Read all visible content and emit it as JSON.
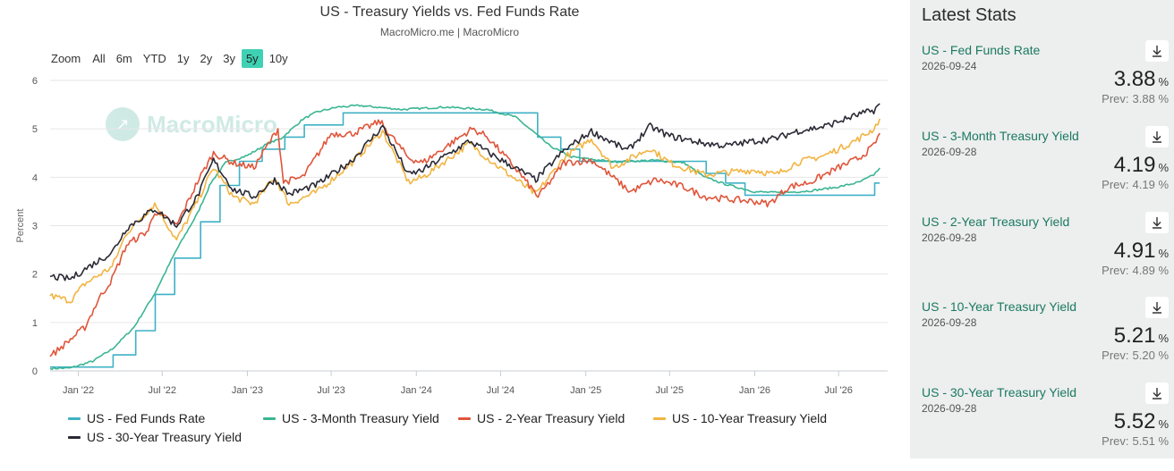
{
  "title": "US - Treasury Yields vs. Fed Funds Rate",
  "subtitle": "MacroMicro.me | MacroMicro",
  "watermark": "MacroMicro",
  "zoom": {
    "label": "Zoom",
    "buttons": [
      "All",
      "6m",
      "YTD",
      "1y",
      "2y",
      "3y",
      "5y",
      "10y"
    ],
    "active": "5y"
  },
  "colors": {
    "fed_funds": "#3fb1c6",
    "t3m": "#3bb593",
    "t2y": "#e0553a",
    "t10y": "#f2b441",
    "t30y": "#2a2a35",
    "accent": "#3fd1b4"
  },
  "chart_data": {
    "type": "line",
    "title": "US - Treasury Yields vs. Fed Funds Rate",
    "ylabel": "Percent",
    "ylim": [
      0,
      6
    ],
    "yticks": [
      "0",
      "1",
      "2",
      "3",
      "4",
      "5",
      "6"
    ],
    "xlim": [
      "2021-11-01",
      "2026-10-15"
    ],
    "xticks": [
      {
        "label": "Jan '22",
        "date": "2022-01-01"
      },
      {
        "label": "Jul '22",
        "date": "2022-07-01"
      },
      {
        "label": "Jan '23",
        "date": "2023-01-01"
      },
      {
        "label": "Jul '23",
        "date": "2023-07-01"
      },
      {
        "label": "Jan '24",
        "date": "2024-01-01"
      },
      {
        "label": "Jul '24",
        "date": "2024-07-01"
      },
      {
        "label": "Jan '25",
        "date": "2025-01-01"
      },
      {
        "label": "Jul '25",
        "date": "2025-07-01"
      },
      {
        "label": "Jan '26",
        "date": "2026-01-01"
      },
      {
        "label": "Jul '26",
        "date": "2026-07-01"
      }
    ],
    "grid": true,
    "legend_position": "bottom",
    "series": [
      {
        "key": "fed_funds",
        "name": "US - Fed Funds Rate",
        "step": true,
        "points": [
          [
            "2021-11-01",
            0.08
          ],
          [
            "2022-03-17",
            0.33
          ],
          [
            "2022-05-05",
            0.83
          ],
          [
            "2022-06-16",
            1.58
          ],
          [
            "2022-07-28",
            2.33
          ],
          [
            "2022-09-22",
            3.08
          ],
          [
            "2022-11-03",
            3.83
          ],
          [
            "2022-12-15",
            4.33
          ],
          [
            "2023-02-02",
            4.58
          ],
          [
            "2023-03-23",
            4.83
          ],
          [
            "2023-05-04",
            5.08
          ],
          [
            "2023-07-27",
            5.33
          ],
          [
            "2024-09-19",
            4.83
          ],
          [
            "2024-11-08",
            4.58
          ],
          [
            "2024-12-19",
            4.33
          ],
          [
            "2025-09-18",
            4.08
          ],
          [
            "2025-10-30",
            3.88
          ],
          [
            "2025-12-11",
            3.63
          ],
          [
            "2026-09-17",
            3.88
          ],
          [
            "2026-09-24",
            3.88
          ]
        ]
      },
      {
        "key": "t3m",
        "name": "US - 3-Month Treasury Yield",
        "points": [
          [
            "2021-11-01",
            0.05
          ],
          [
            "2021-12-15",
            0.06
          ],
          [
            "2022-02-01",
            0.2
          ],
          [
            "2022-03-15",
            0.45
          ],
          [
            "2022-05-01",
            0.9
          ],
          [
            "2022-06-15",
            1.6
          ],
          [
            "2022-08-01",
            2.5
          ],
          [
            "2022-09-15",
            3.25
          ],
          [
            "2022-10-15",
            3.9
          ],
          [
            "2022-11-15",
            4.3
          ],
          [
            "2023-01-01",
            4.45
          ],
          [
            "2023-02-15",
            4.7
          ],
          [
            "2023-03-15",
            4.8
          ],
          [
            "2023-05-01",
            5.2
          ],
          [
            "2023-06-01",
            5.35
          ],
          [
            "2023-07-15",
            5.45
          ],
          [
            "2023-09-01",
            5.48
          ],
          [
            "2023-12-01",
            5.4
          ],
          [
            "2024-03-01",
            5.45
          ],
          [
            "2024-06-01",
            5.4
          ],
          [
            "2024-08-01",
            5.25
          ],
          [
            "2024-09-15",
            4.9
          ],
          [
            "2024-10-15",
            4.65
          ],
          [
            "2024-12-01",
            4.42
          ],
          [
            "2025-03-01",
            4.32
          ],
          [
            "2025-06-01",
            4.35
          ],
          [
            "2025-08-01",
            4.3
          ],
          [
            "2025-09-15",
            4.0
          ],
          [
            "2025-11-01",
            3.85
          ],
          [
            "2026-01-01",
            3.7
          ],
          [
            "2026-03-01",
            3.68
          ],
          [
            "2026-05-01",
            3.72
          ],
          [
            "2026-07-01",
            3.8
          ],
          [
            "2026-08-15",
            3.9
          ],
          [
            "2026-09-15",
            4.05
          ],
          [
            "2026-09-28",
            4.19
          ]
        ]
      },
      {
        "key": "t2y",
        "name": "US - 2-Year Treasury Yield",
        "points": [
          [
            "2021-11-01",
            0.3
          ],
          [
            "2021-12-15",
            0.65
          ],
          [
            "2022-01-15",
            0.9
          ],
          [
            "2022-02-15",
            1.5
          ],
          [
            "2022-03-15",
            1.9
          ],
          [
            "2022-04-15",
            2.6
          ],
          [
            "2022-06-01",
            2.9
          ],
          [
            "2022-06-15",
            3.3
          ],
          [
            "2022-08-01",
            3.0
          ],
          [
            "2022-09-15",
            3.9
          ],
          [
            "2022-10-20",
            4.5
          ],
          [
            "2022-12-01",
            4.3
          ],
          [
            "2023-01-15",
            4.2
          ],
          [
            "2023-03-08",
            5.0
          ],
          [
            "2023-03-20",
            3.9
          ],
          [
            "2023-05-01",
            4.0
          ],
          [
            "2023-07-01",
            4.9
          ],
          [
            "2023-08-15",
            4.9
          ],
          [
            "2023-10-15",
            5.15
          ],
          [
            "2023-12-15",
            4.4
          ],
          [
            "2024-01-15",
            4.3
          ],
          [
            "2024-04-30",
            5.0
          ],
          [
            "2024-06-01",
            4.85
          ],
          [
            "2024-08-01",
            4.2
          ],
          [
            "2024-09-20",
            3.6
          ],
          [
            "2024-10-15",
            3.9
          ],
          [
            "2024-11-15",
            4.3
          ],
          [
            "2025-01-15",
            4.35
          ],
          [
            "2025-04-07",
            3.7
          ],
          [
            "2025-06-01",
            3.95
          ],
          [
            "2025-08-01",
            3.8
          ],
          [
            "2025-09-15",
            3.6
          ],
          [
            "2025-11-01",
            3.55
          ],
          [
            "2026-01-01",
            3.5
          ],
          [
            "2026-02-01",
            3.45
          ],
          [
            "2026-03-15",
            3.8
          ],
          [
            "2026-05-01",
            3.9
          ],
          [
            "2026-07-01",
            4.2
          ],
          [
            "2026-08-15",
            4.4
          ],
          [
            "2026-09-15",
            4.65
          ],
          [
            "2026-09-28",
            4.91
          ]
        ]
      },
      {
        "key": "t10y",
        "name": "US - 10-Year Treasury Yield",
        "points": [
          [
            "2021-11-01",
            1.55
          ],
          [
            "2021-12-15",
            1.45
          ],
          [
            "2022-01-15",
            1.8
          ],
          [
            "2022-03-15",
            2.15
          ],
          [
            "2022-04-15",
            2.85
          ],
          [
            "2022-06-15",
            3.45
          ],
          [
            "2022-08-01",
            2.7
          ],
          [
            "2022-09-15",
            3.5
          ],
          [
            "2022-10-20",
            4.2
          ],
          [
            "2022-12-01",
            3.6
          ],
          [
            "2023-01-15",
            3.45
          ],
          [
            "2023-03-01",
            4.0
          ],
          [
            "2023-04-01",
            3.45
          ],
          [
            "2023-06-01",
            3.7
          ],
          [
            "2023-08-15",
            4.3
          ],
          [
            "2023-10-20",
            4.95
          ],
          [
            "2023-12-15",
            3.9
          ],
          [
            "2024-01-15",
            4.0
          ],
          [
            "2024-04-25",
            4.7
          ],
          [
            "2024-06-15",
            4.3
          ],
          [
            "2024-09-15",
            3.65
          ],
          [
            "2024-11-15",
            4.4
          ],
          [
            "2025-01-13",
            4.8
          ],
          [
            "2025-03-01",
            4.2
          ],
          [
            "2025-05-20",
            4.6
          ],
          [
            "2025-07-01",
            4.3
          ],
          [
            "2025-09-15",
            4.05
          ],
          [
            "2025-11-01",
            4.1
          ],
          [
            "2026-01-01",
            4.15
          ],
          [
            "2026-02-15",
            4.05
          ],
          [
            "2026-04-01",
            4.3
          ],
          [
            "2026-06-01",
            4.45
          ],
          [
            "2026-07-15",
            4.65
          ],
          [
            "2026-08-15",
            4.8
          ],
          [
            "2026-09-15",
            5.0
          ],
          [
            "2026-09-28",
            5.21
          ]
        ]
      },
      {
        "key": "t30y",
        "name": "US - 30-Year Treasury Yield",
        "points": [
          [
            "2021-11-01",
            1.95
          ],
          [
            "2021-12-15",
            1.9
          ],
          [
            "2022-01-15",
            2.1
          ],
          [
            "2022-03-15",
            2.45
          ],
          [
            "2022-04-15",
            2.95
          ],
          [
            "2022-06-15",
            3.35
          ],
          [
            "2022-08-01",
            3.0
          ],
          [
            "2022-09-15",
            3.6
          ],
          [
            "2022-10-20",
            4.35
          ],
          [
            "2022-12-01",
            3.75
          ],
          [
            "2023-01-15",
            3.6
          ],
          [
            "2023-03-01",
            3.95
          ],
          [
            "2023-04-01",
            3.65
          ],
          [
            "2023-06-01",
            3.85
          ],
          [
            "2023-08-15",
            4.35
          ],
          [
            "2023-10-20",
            5.05
          ],
          [
            "2023-12-15",
            4.05
          ],
          [
            "2024-01-15",
            4.15
          ],
          [
            "2024-04-25",
            4.75
          ],
          [
            "2024-06-15",
            4.45
          ],
          [
            "2024-09-15",
            3.95
          ],
          [
            "2024-11-15",
            4.55
          ],
          [
            "2025-01-13",
            4.95
          ],
          [
            "2025-04-01",
            4.55
          ],
          [
            "2025-05-20",
            5.05
          ],
          [
            "2025-07-01",
            4.85
          ],
          [
            "2025-09-15",
            4.7
          ],
          [
            "2025-11-01",
            4.65
          ],
          [
            "2026-01-01",
            4.75
          ],
          [
            "2026-02-15",
            4.8
          ],
          [
            "2026-04-01",
            4.95
          ],
          [
            "2026-06-01",
            5.05
          ],
          [
            "2026-07-15",
            5.2
          ],
          [
            "2026-08-15",
            5.3
          ],
          [
            "2026-09-15",
            5.38
          ],
          [
            "2026-09-28",
            5.52
          ]
        ]
      }
    ]
  },
  "sidebar": {
    "title": "Latest Stats",
    "stats": [
      {
        "name": "US - Fed Funds Rate",
        "date": "2026-09-24",
        "value": "3.88",
        "unit": "%",
        "prev_label": "Prev:",
        "prev_value": "3.88",
        "prev_unit": "%",
        "icon": "download-icon"
      },
      {
        "name": "US - 3-Month Treasury Yield",
        "date": "2026-09-28",
        "value": "4.19",
        "unit": "%",
        "prev_label": "Prev:",
        "prev_value": "4.19",
        "prev_unit": "%",
        "icon": "download-icon"
      },
      {
        "name": "US - 2-Year Treasury Yield",
        "date": "2026-09-28",
        "value": "4.91",
        "unit": "%",
        "prev_label": "Prev:",
        "prev_value": "4.89",
        "prev_unit": "%",
        "icon": "download-icon"
      },
      {
        "name": "US - 10-Year Treasury Yield",
        "date": "2026-09-28",
        "value": "5.21",
        "unit": "%",
        "prev_label": "Prev:",
        "prev_value": "5.20",
        "prev_unit": "%",
        "icon": "download-icon"
      },
      {
        "name": "US - 30-Year Treasury Yield",
        "date": "2026-09-28",
        "value": "5.52",
        "unit": "%",
        "prev_label": "Prev:",
        "prev_value": "5.51",
        "prev_unit": "%",
        "icon": "download-icon"
      }
    ]
  }
}
